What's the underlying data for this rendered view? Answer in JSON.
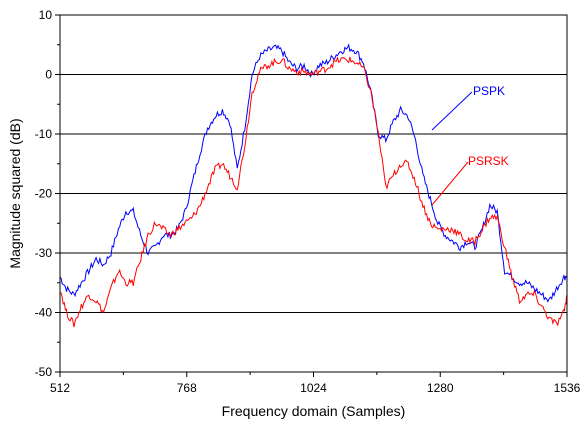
{
  "chart_data": {
    "type": "line",
    "title": "",
    "xlabel": "Frequency domain (Samples)",
    "ylabel": "Magnitude squared (dB)",
    "xlim": [
      512,
      1536
    ],
    "ylim": [
      -50,
      10
    ],
    "xticks": [
      512,
      768,
      1024,
      1280,
      1536
    ],
    "yticks": [
      10,
      0,
      -10,
      -20,
      -30,
      -40,
      -50
    ],
    "grid": "horizontal",
    "legend": "inline-labels",
    "series": [
      {
        "name": "PSPK",
        "color": "#0000ff",
        "x": [
          512,
          525,
          540,
          555,
          570,
          585,
          600,
          615,
          630,
          645,
          660,
          675,
          690,
          705,
          720,
          735,
          750,
          765,
          780,
          795,
          810,
          825,
          840,
          855,
          870,
          885,
          900,
          915,
          930,
          945,
          960,
          975,
          990,
          1005,
          1020,
          1035,
          1050,
          1065,
          1080,
          1095,
          1110,
          1125,
          1140,
          1155,
          1170,
          1185,
          1200,
          1215,
          1230,
          1245,
          1260,
          1275,
          1290,
          1305,
          1320,
          1335,
          1350,
          1365,
          1380,
          1395,
          1410,
          1425,
          1440,
          1455,
          1470,
          1485,
          1500,
          1515,
          1530,
          1536
        ],
        "values": [
          -34,
          -36,
          -37,
          -35,
          -33,
          -31,
          -32,
          -30,
          -26,
          -23,
          -23,
          -27,
          -30,
          -29,
          -27,
          -27,
          -26,
          -23,
          -18,
          -13,
          -9,
          -7,
          -6,
          -8,
          -16,
          -9,
          0,
          3,
          4,
          4.5,
          4,
          2,
          1,
          1.5,
          0,
          1.5,
          2,
          3,
          4,
          4.5,
          4,
          2,
          -3,
          -10,
          -11,
          -8,
          -6,
          -7,
          -11,
          -17,
          -21,
          -25,
          -27,
          -28,
          -29,
          -28,
          -29,
          -26,
          -22,
          -23,
          -33,
          -34,
          -35,
          -35,
          -36,
          -37,
          -38,
          -36,
          -34,
          -34
        ]
      },
      {
        "name": "PSRSK",
        "color": "#ff0000",
        "x": [
          512,
          525,
          540,
          555,
          570,
          585,
          600,
          615,
          630,
          645,
          660,
          675,
          690,
          705,
          720,
          735,
          750,
          765,
          780,
          795,
          810,
          825,
          840,
          855,
          870,
          885,
          900,
          915,
          930,
          945,
          960,
          975,
          990,
          1005,
          1020,
          1035,
          1050,
          1065,
          1080,
          1095,
          1110,
          1125,
          1140,
          1155,
          1170,
          1185,
          1200,
          1215,
          1230,
          1245,
          1260,
          1275,
          1290,
          1305,
          1320,
          1335,
          1350,
          1365,
          1380,
          1395,
          1410,
          1425,
          1440,
          1455,
          1470,
          1485,
          1500,
          1515,
          1530,
          1536
        ],
        "values": [
          -36,
          -40,
          -42,
          -39,
          -37,
          -38,
          -40,
          -36,
          -33,
          -35,
          -35,
          -31,
          -27,
          -25,
          -26,
          -27,
          -26,
          -25,
          -24,
          -22,
          -19,
          -16,
          -15,
          -17,
          -19,
          -12,
          -3,
          0.5,
          1.5,
          2,
          2.5,
          1,
          0.5,
          0.5,
          0,
          0.5,
          1,
          2,
          2.5,
          2.5,
          2,
          1,
          -3,
          -10,
          -19,
          -17,
          -15,
          -15,
          -18,
          -22,
          -25,
          -26,
          -26,
          -26,
          -27,
          -28,
          -28,
          -26,
          -24,
          -24,
          -29,
          -34,
          -38,
          -37,
          -37,
          -39,
          -41,
          -42,
          -40,
          -37
        ]
      }
    ],
    "annotations": [
      {
        "text": "PSPK",
        "color": "#0000ff"
      },
      {
        "text": "PSRSK",
        "color": "#ff0000"
      }
    ]
  }
}
